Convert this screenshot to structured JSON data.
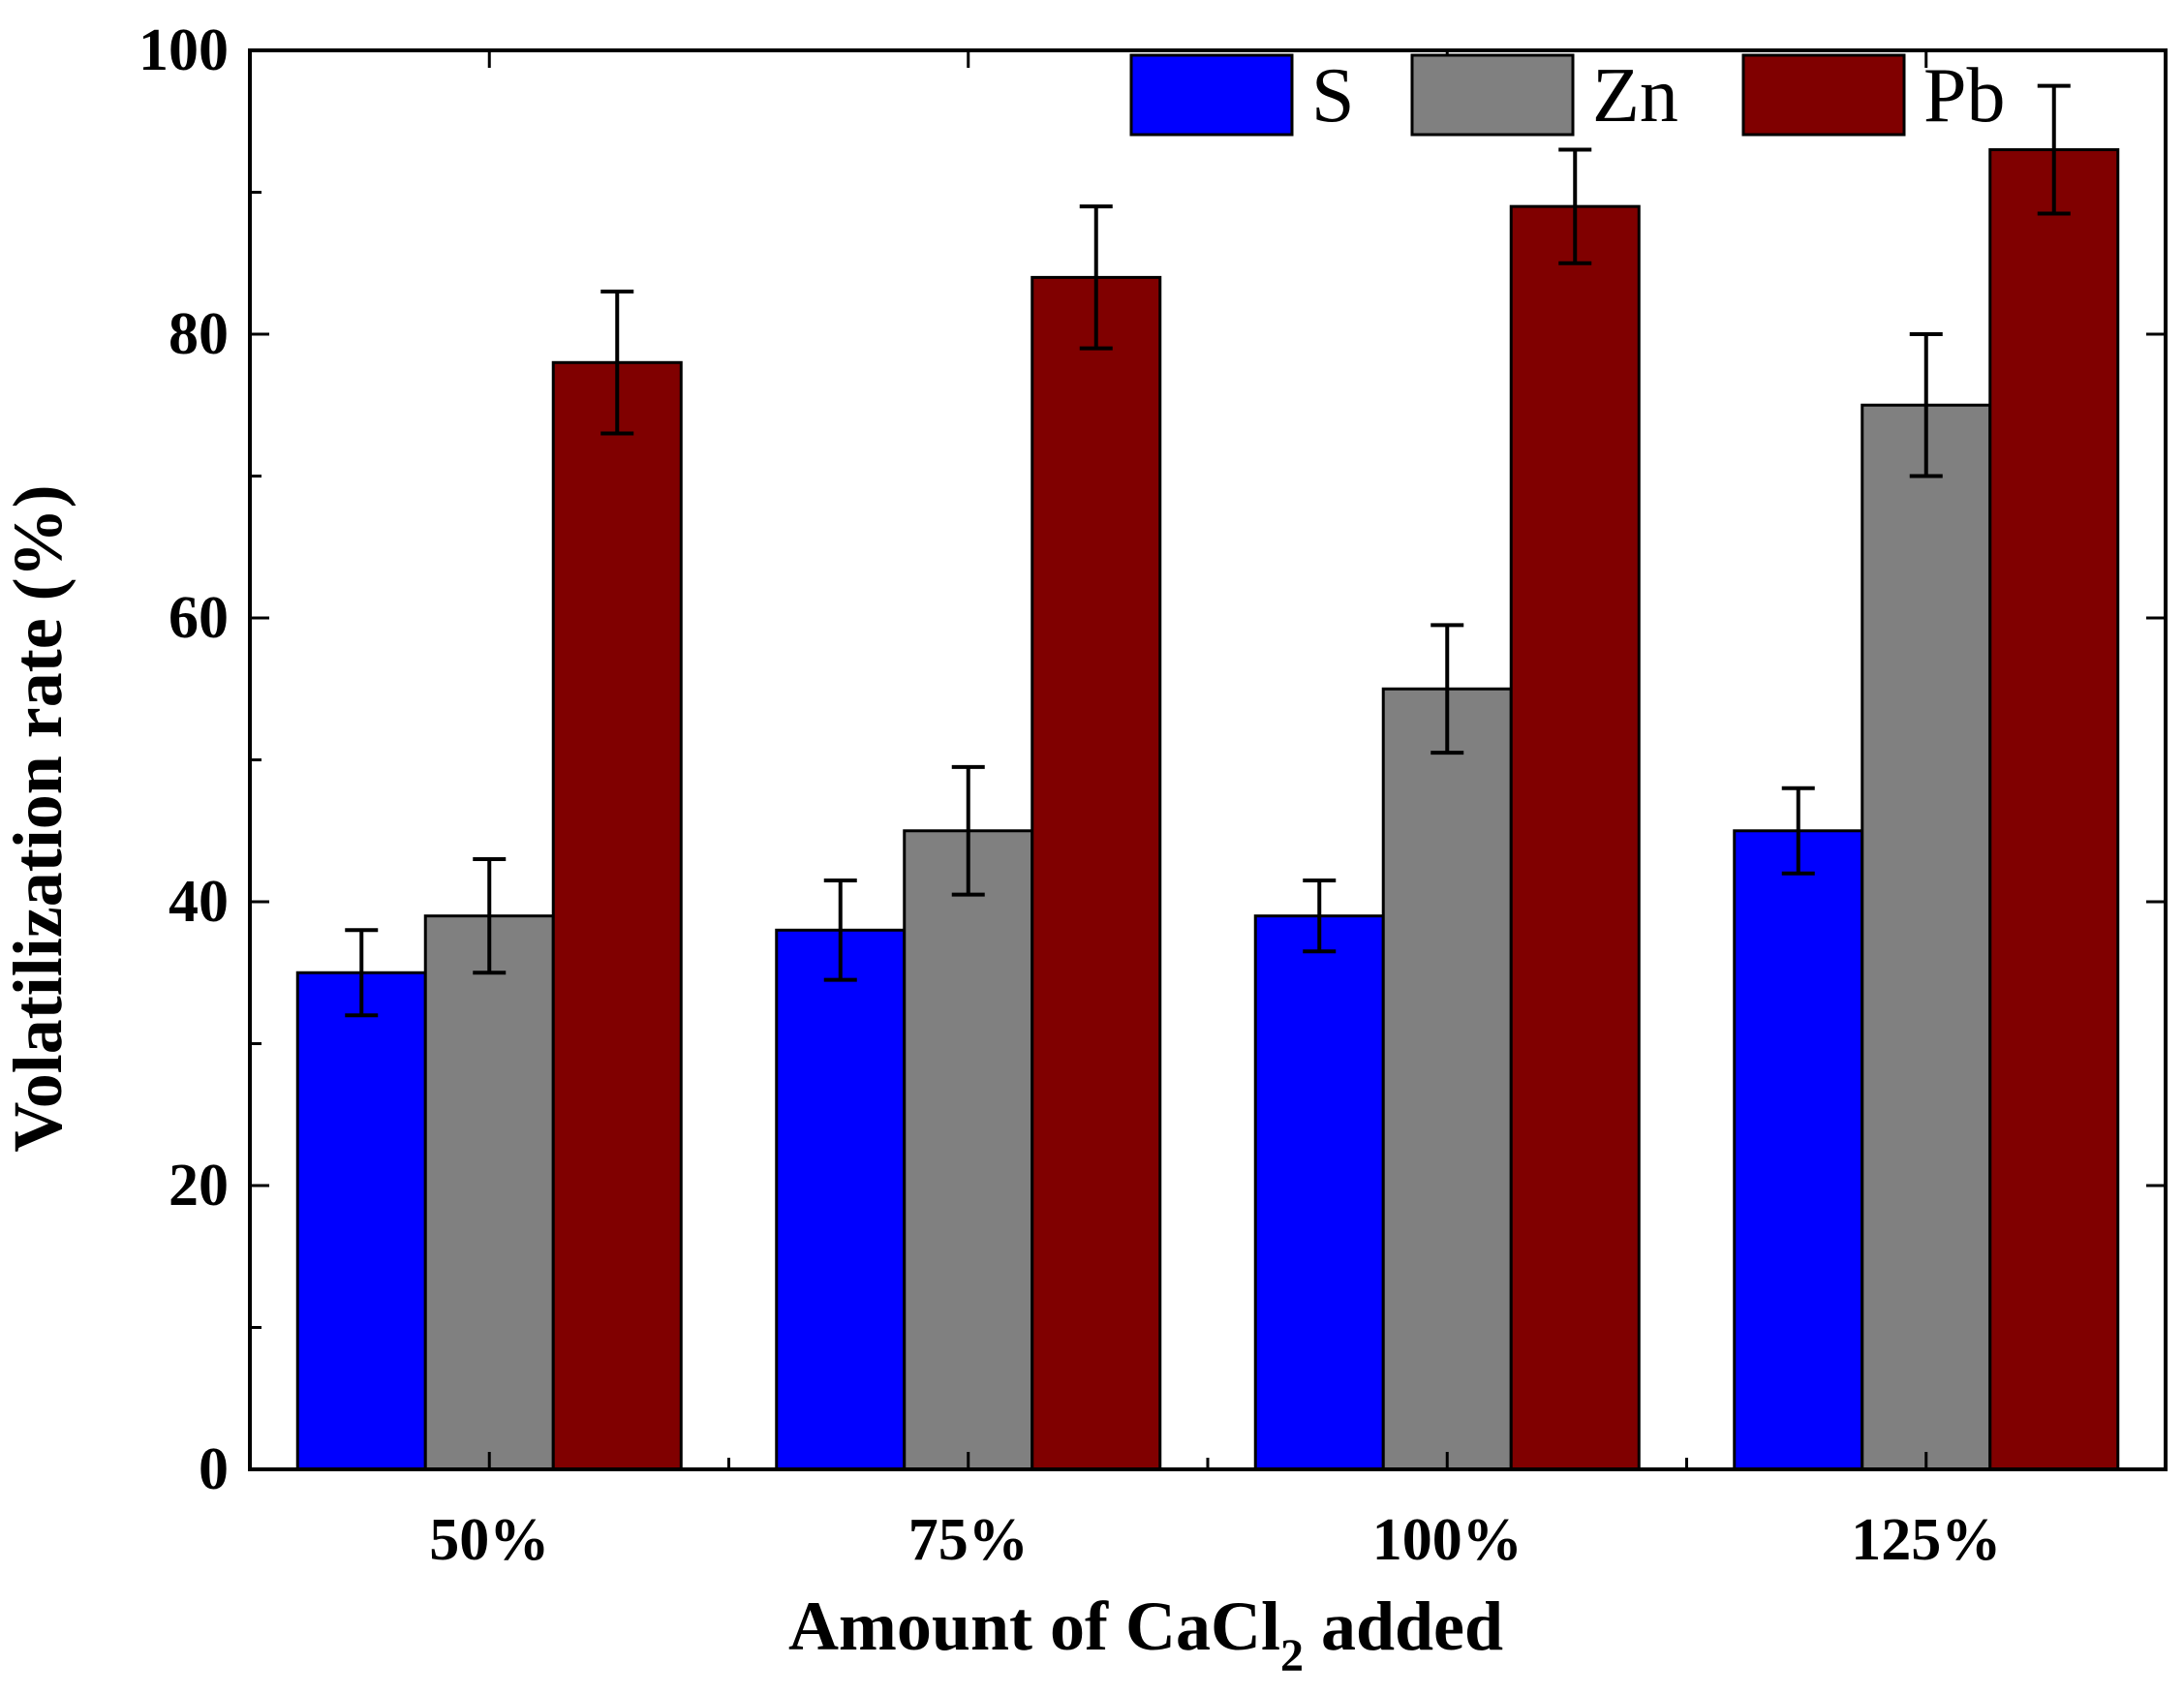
{
  "chart_data": {
    "type": "bar",
    "categories": [
      "50%",
      "75%",
      "100%",
      "125%"
    ],
    "series": [
      {
        "name": "S",
        "color": "#0000ff",
        "values": [
          35,
          38,
          39,
          45
        ],
        "errors": [
          3,
          3.5,
          2.5,
          3
        ]
      },
      {
        "name": "Zn",
        "color": "#808080",
        "values": [
          39,
          45,
          55,
          75
        ],
        "errors": [
          4,
          4.5,
          4.5,
          5
        ]
      },
      {
        "name": "Pb",
        "color": "#800000",
        "values": [
          78,
          84,
          89,
          93
        ],
        "errors": [
          5,
          5,
          4,
          4.5
        ]
      }
    ],
    "xlabel": "Amount of CaCl",
    "xlabel_subscript": "2",
    "xlabel_suffix": " added",
    "ylabel": "Volatilization rate (%)",
    "ylim": [
      0,
      100
    ],
    "yticks": [
      "0",
      "20",
      "40",
      "60",
      "80",
      "100"
    ],
    "legend_position": "top-right",
    "grid": false
  }
}
